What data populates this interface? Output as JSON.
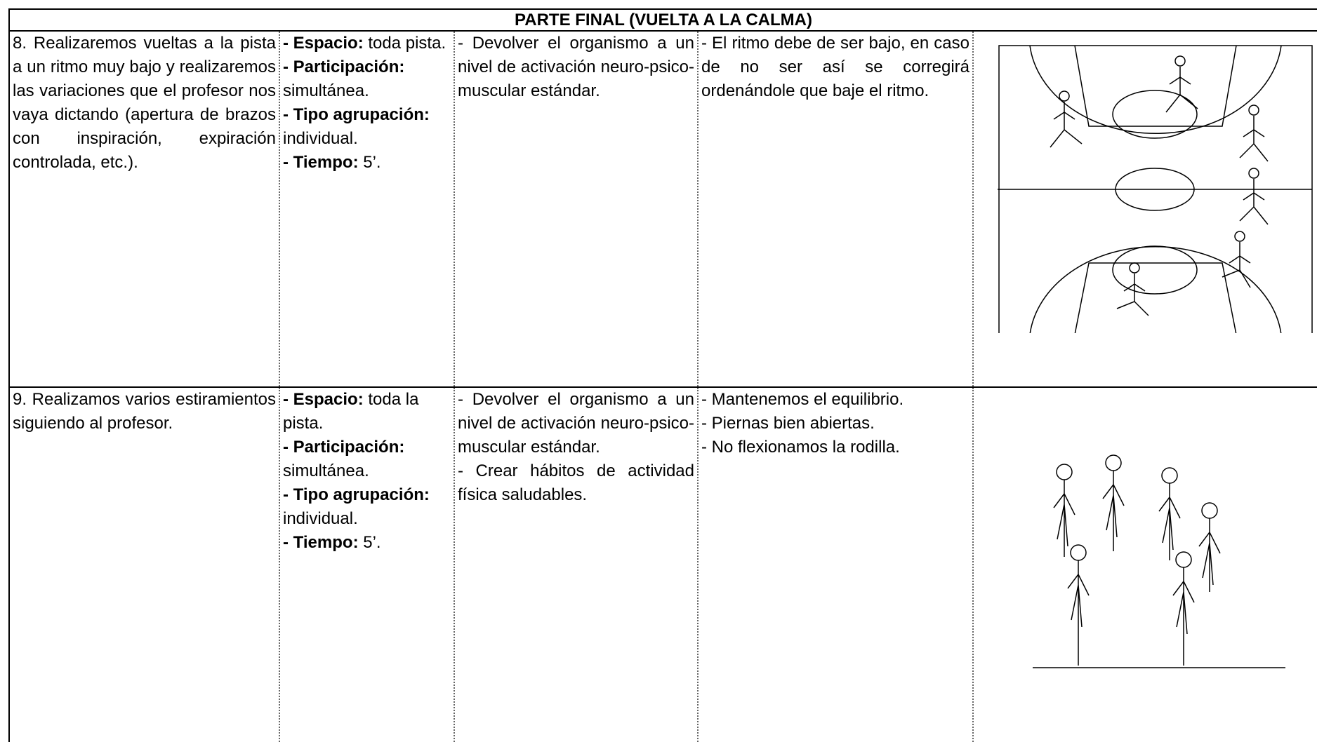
{
  "table": {
    "title": "PARTE FINAL (VUELTA A LA CALMA)",
    "rows": [
      {
        "description": "8. Realizaremos vueltas a la pista a un ritmo muy bajo y realizaremos las variaciones que el profesor nos vaya dictando (apertura de brazos con inspiración, expiración controlada, etc.).",
        "organization": [
          {
            "label": "- Espacio:",
            "text": "toda pista."
          },
          {
            "label": "- Participación:",
            "text": "simultánea."
          },
          {
            "label": "- Tipo agrupación:",
            "text": "individual."
          },
          {
            "label": "- Tiempo:",
            "text": "5’."
          }
        ],
        "objectives": [
          "- Devolver el organismo a un nivel de activación neuro-psico-muscular estándar."
        ],
        "notes": [
          "- El ritmo debe de ser bajo, en caso de no ser así se corregirá ordenándole que baje el ritmo."
        ]
      },
      {
        "description": "9. Realizamos varios estiramientos siguiendo al profesor.",
        "organization": [
          {
            "label": "- Espacio:",
            "text": "toda la pista."
          },
          {
            "label": "- Participación:",
            "text": "simultánea."
          },
          {
            "label": "- Tipo agrupación:",
            "text": "individual."
          },
          {
            "label": "- Tiempo:",
            "text": "5’."
          }
        ],
        "objectives": [
          "- Devolver el organismo a un nivel de activación neuro-psico-muscular estándar.",
          "- Crear hábitos de actividad física saludables."
        ],
        "notes": [
          "- Mantenemos el equilibrio.",
          "- Piernas bien abiertas.",
          "- No flexionamos la rodilla."
        ]
      }
    ]
  }
}
